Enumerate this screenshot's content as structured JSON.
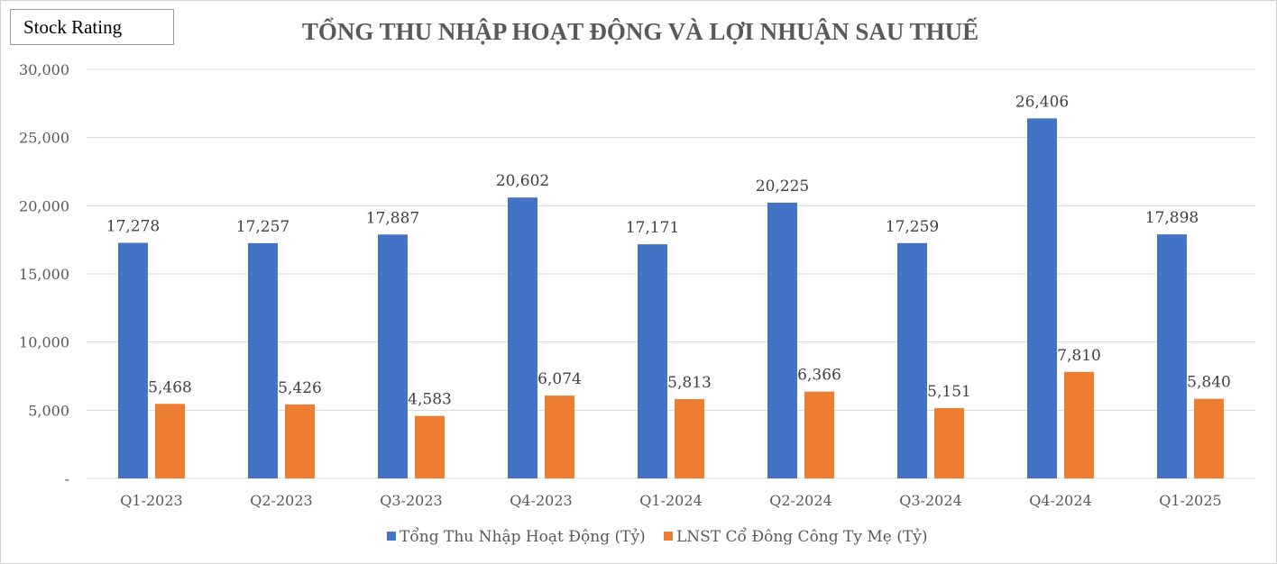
{
  "badge": {
    "label": "Stock Rating"
  },
  "chart_data": {
    "type": "bar",
    "title": "TỔNG THU NHẬP HOẠT ĐỘNG VÀ LỢI NHUẬN SAU THUẾ",
    "categories": [
      "Q1-2023",
      "Q2-2023",
      "Q3-2023",
      "Q4-2023",
      "Q1-2024",
      "Q2-2024",
      "Q3-2024",
      "Q4-2024",
      "Q1-2025"
    ],
    "series": [
      {
        "name": "Tổng Thu Nhập Hoạt Động (Tỷ)",
        "color": "#4472C4",
        "values": [
          17278,
          17257,
          17887,
          20602,
          17171,
          20225,
          17259,
          26406,
          17898
        ]
      },
      {
        "name": "LNST Cổ Đông Công Ty Mẹ (Tỷ)",
        "color": "#ED7D31",
        "values": [
          5468,
          5426,
          4583,
          6074,
          5813,
          6366,
          5151,
          7810,
          5840
        ]
      }
    ],
    "ylim": [
      0,
      30000
    ],
    "yticks": [
      0,
      5000,
      10000,
      15000,
      20000,
      25000,
      30000
    ],
    "ytick_labels": [
      "-",
      "5,000",
      "10,000",
      "15,000",
      "20,000",
      "25,000",
      "30,000"
    ],
    "grid": true,
    "legend": "bottom"
  }
}
